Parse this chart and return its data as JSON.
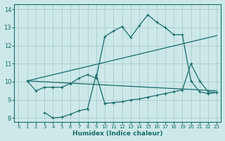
{
  "bg_color": "#cce8e8",
  "grid_color": "#aacccc",
  "line_color": "#1a6b6b",
  "xlabel": "Humidex (Indice chaleur)",
  "xlim": [
    -0.5,
    23.5
  ],
  "ylim": [
    7.8,
    14.3
  ],
  "yticks": [
    8,
    9,
    10,
    11,
    12,
    13,
    14
  ],
  "xticks": [
    0,
    1,
    2,
    3,
    4,
    5,
    6,
    7,
    8,
    9,
    10,
    11,
    12,
    13,
    14,
    15,
    16,
    17,
    18,
    19,
    20,
    21,
    22,
    23
  ],
  "line1_x": [
    1,
    2,
    3,
    4,
    5,
    6,
    7,
    8,
    9,
    10,
    11,
    12,
    13,
    14,
    15,
    16,
    17,
    18,
    19,
    20,
    21,
    22,
    23
  ],
  "line1_y": [
    10.05,
    9.5,
    9.7,
    9.7,
    9.7,
    9.9,
    10.2,
    10.4,
    10.2,
    12.5,
    12.8,
    13.05,
    12.45,
    13.1,
    13.7,
    13.3,
    13.0,
    12.6,
    12.6,
    10.05,
    9.45,
    9.35,
    9.4
  ],
  "line2_x": [
    1,
    23
  ],
  "line2_y": [
    10.05,
    12.55
  ],
  "line3_x": [
    1,
    23
  ],
  "line3_y": [
    10.05,
    9.5
  ],
  "line4_x": [
    3,
    4,
    5,
    6,
    7,
    8,
    9,
    10,
    11,
    12,
    13,
    14,
    15,
    16,
    17,
    18,
    19,
    20,
    21,
    22,
    23
  ],
  "line4_y": [
    8.3,
    8.0,
    8.05,
    8.2,
    8.4,
    8.5,
    10.4,
    8.8,
    8.85,
    8.9,
    9.0,
    9.05,
    9.15,
    9.25,
    9.35,
    9.45,
    9.55,
    11.0,
    10.05,
    9.45,
    9.4
  ]
}
